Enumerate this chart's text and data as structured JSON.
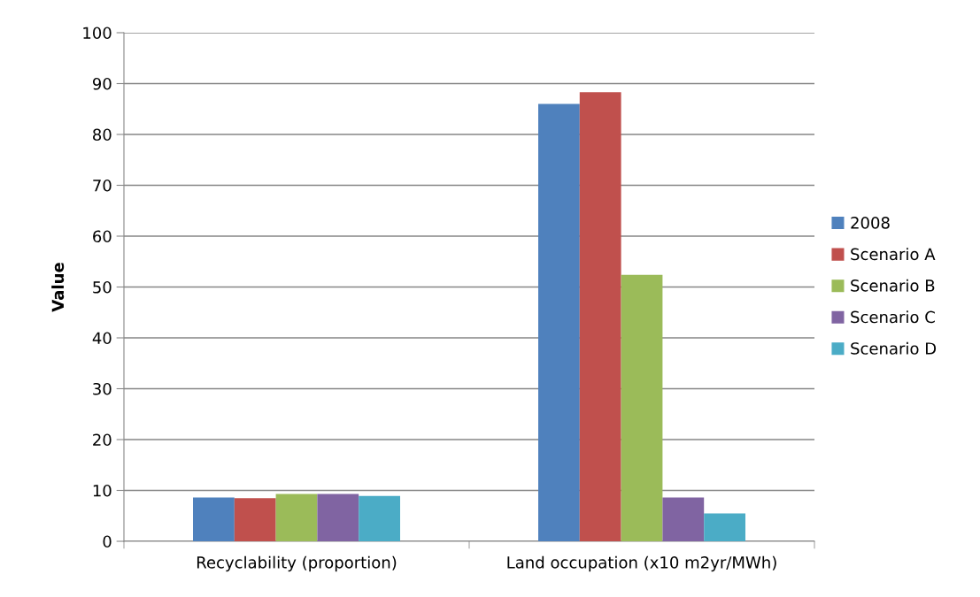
{
  "chart_data": {
    "type": "bar",
    "ylabel": "Value",
    "categories": [
      "Recyclability (proportion)",
      "Land occupation (x10 m2yr/MWh)"
    ],
    "series": [
      {
        "name": "2008",
        "color": "#4f81bd",
        "values": [
          8.6,
          86.0
        ]
      },
      {
        "name": "Scenario A",
        "color": "#c0504d",
        "values": [
          8.5,
          88.3
        ]
      },
      {
        "name": "Scenario B",
        "color": "#9bbb59",
        "values": [
          9.3,
          52.4
        ]
      },
      {
        "name": "Scenario C",
        "color": "#8064a2",
        "values": [
          9.3,
          8.6
        ]
      },
      {
        "name": "Scenario D",
        "color": "#4bacc6",
        "values": [
          8.9,
          5.5
        ]
      }
    ],
    "ylim": [
      0,
      100
    ],
    "yticks": [
      0,
      10,
      20,
      30,
      40,
      50,
      60,
      70,
      80,
      90,
      100
    ],
    "grid": "y",
    "legend": "right"
  }
}
